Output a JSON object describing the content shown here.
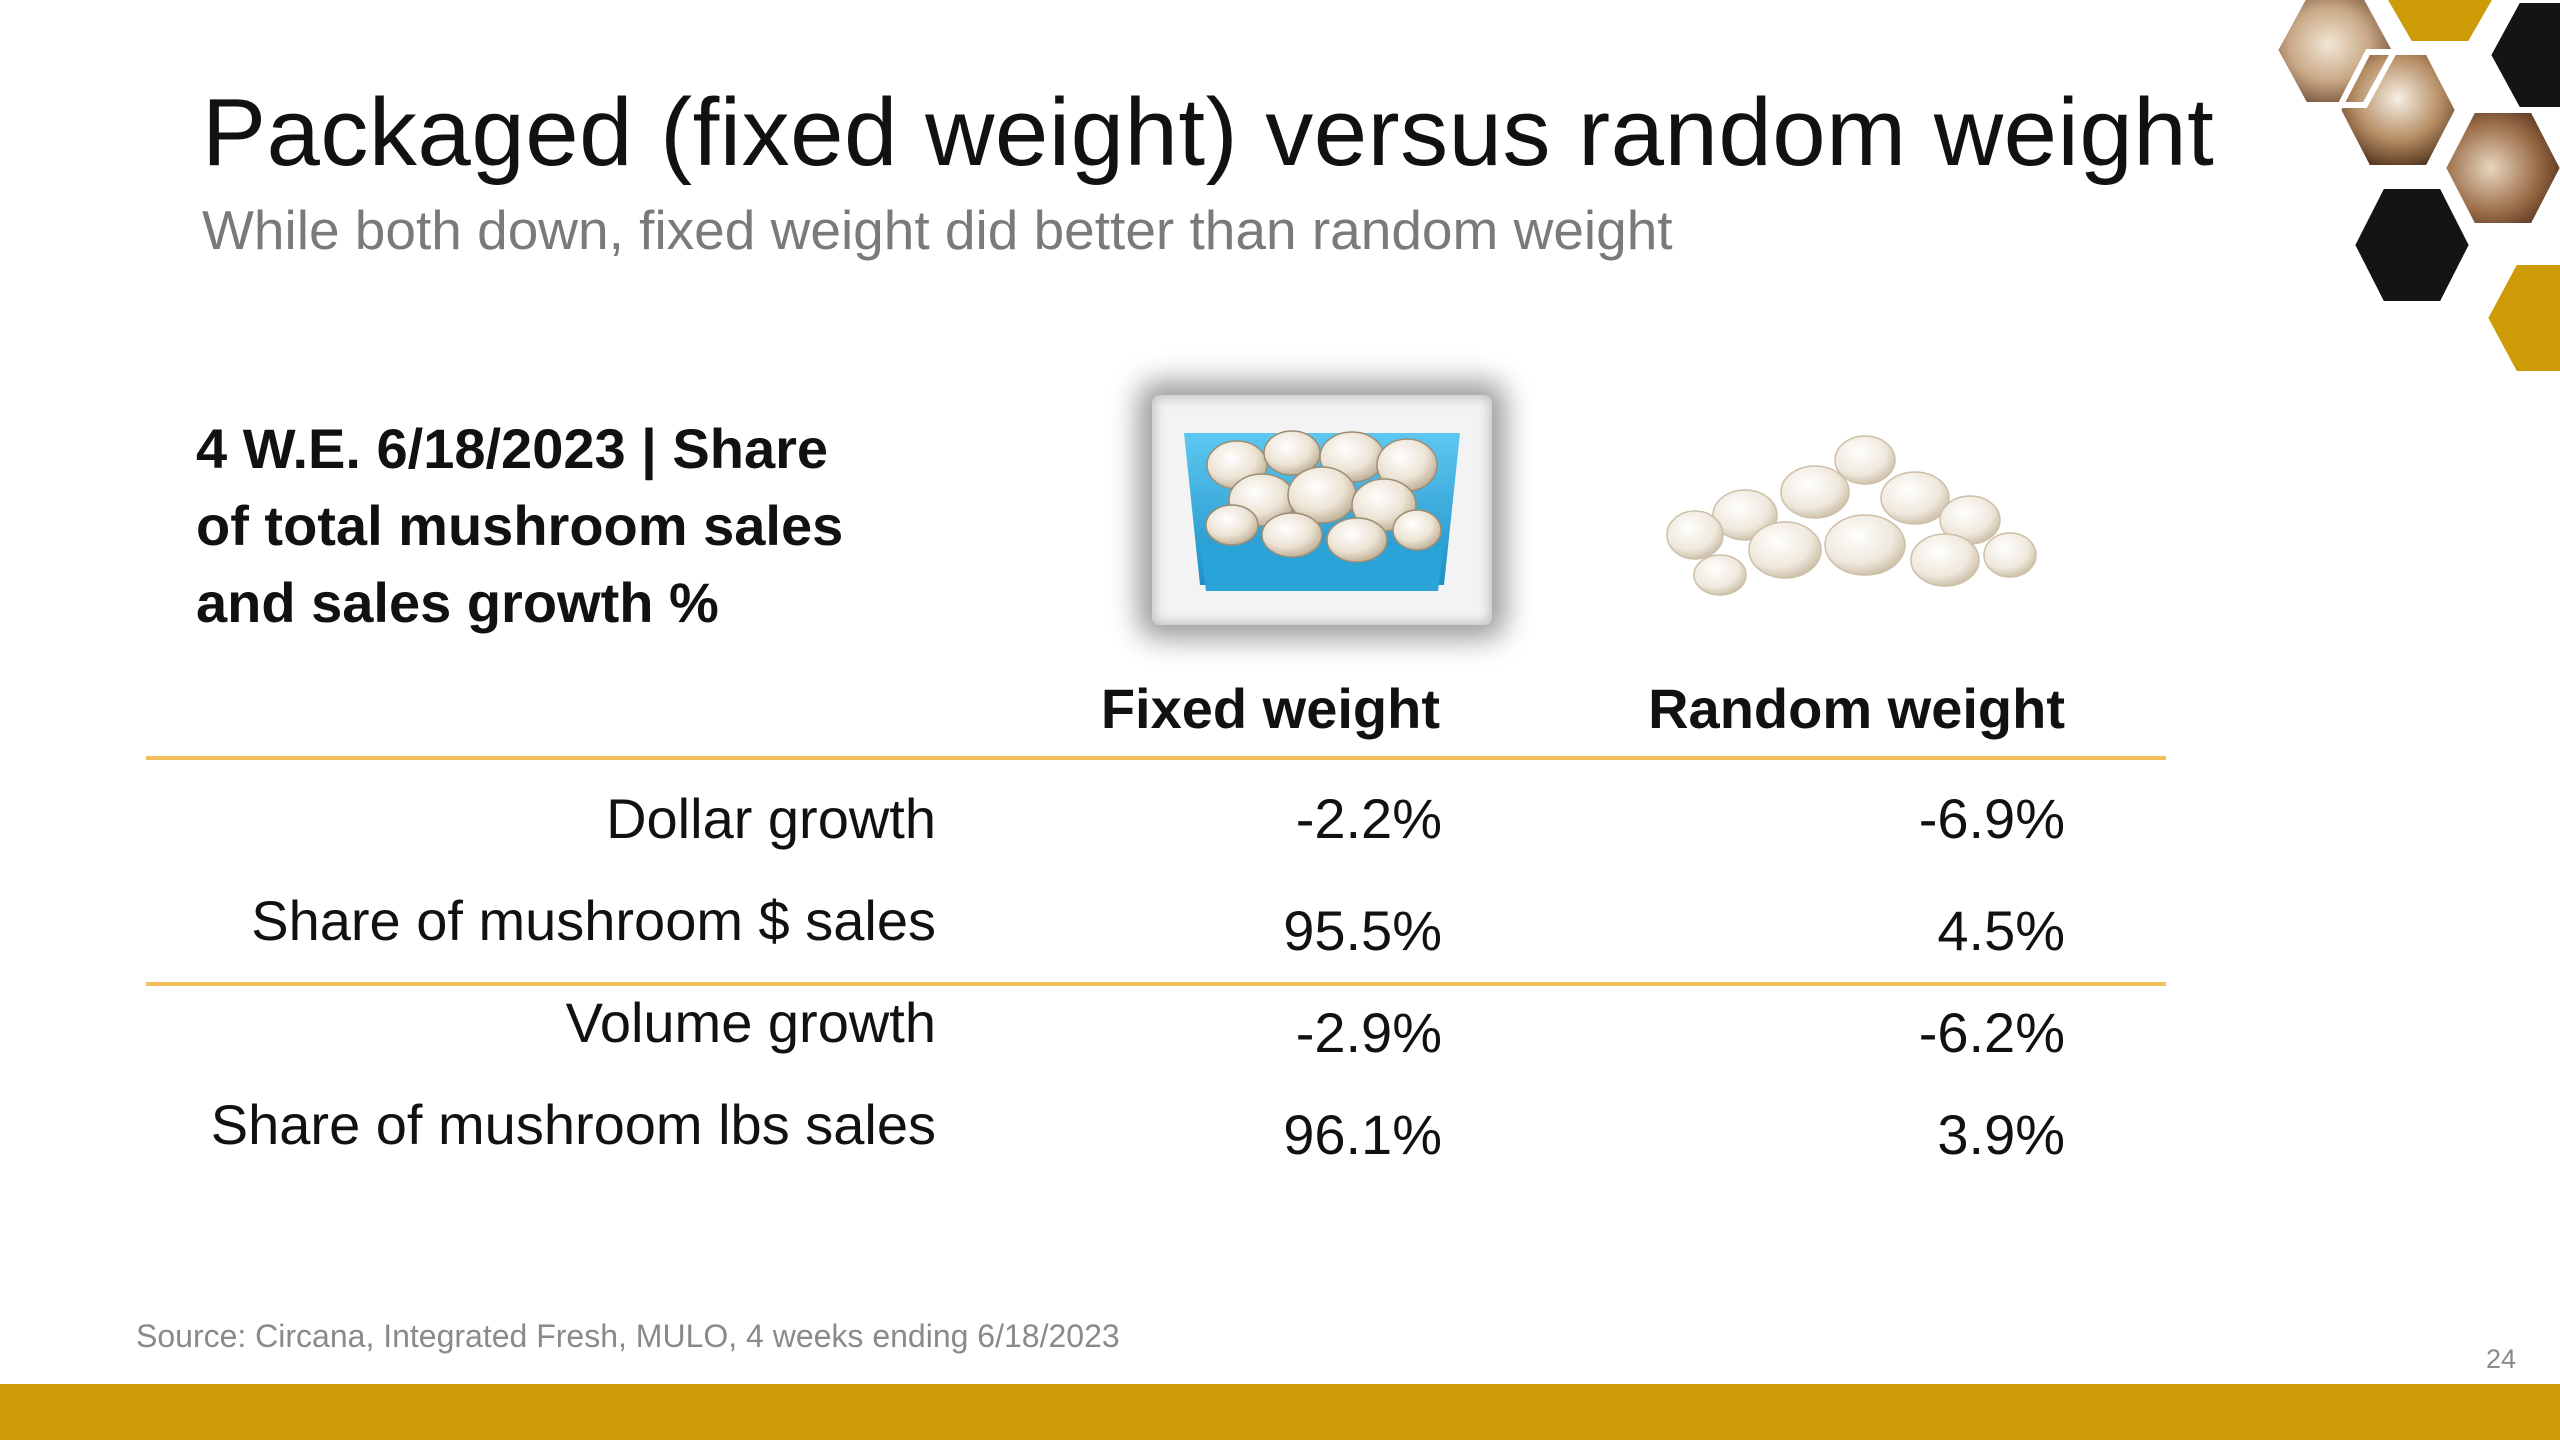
{
  "slide": {
    "title": "Packaged (fixed weight) versus random weight",
    "subtitle": "While both down, fixed weight did better than random weight",
    "table_heading": [
      "4 W.E. 6/18/2023 | Share",
      "of total mushroom sales",
      "and sales growth %"
    ],
    "columns": [
      "Fixed weight",
      "Random weight"
    ],
    "rows": [
      {
        "label": "Dollar growth",
        "fixed": "-2.2%",
        "random": "-6.9%"
      },
      {
        "label": "Share of mushroom $ sales",
        "fixed": "95.5%",
        "random": "4.5%"
      },
      {
        "label": "Volume growth",
        "fixed": "-2.9%",
        "random": "-6.2%"
      },
      {
        "label": "Share of mushroom lbs sales",
        "fixed": "96.1%",
        "random": "3.9%"
      }
    ],
    "source": "Source: Circana, Integrated Fresh, MULO, 4 weeks ending 6/18/2023",
    "page_number": "24"
  },
  "images": {
    "packaged": "packaged-mushrooms-image",
    "loose": "loose-mushrooms-image",
    "decor": "honeycomb-decoration"
  },
  "colors": {
    "accent_gold": "#cc9b06",
    "rule_gold": "#f2c05a",
    "honeycomb_black": "#141414",
    "package_blue": "#3fb6e6",
    "subtitle_gray": "#7a7a7a"
  }
}
